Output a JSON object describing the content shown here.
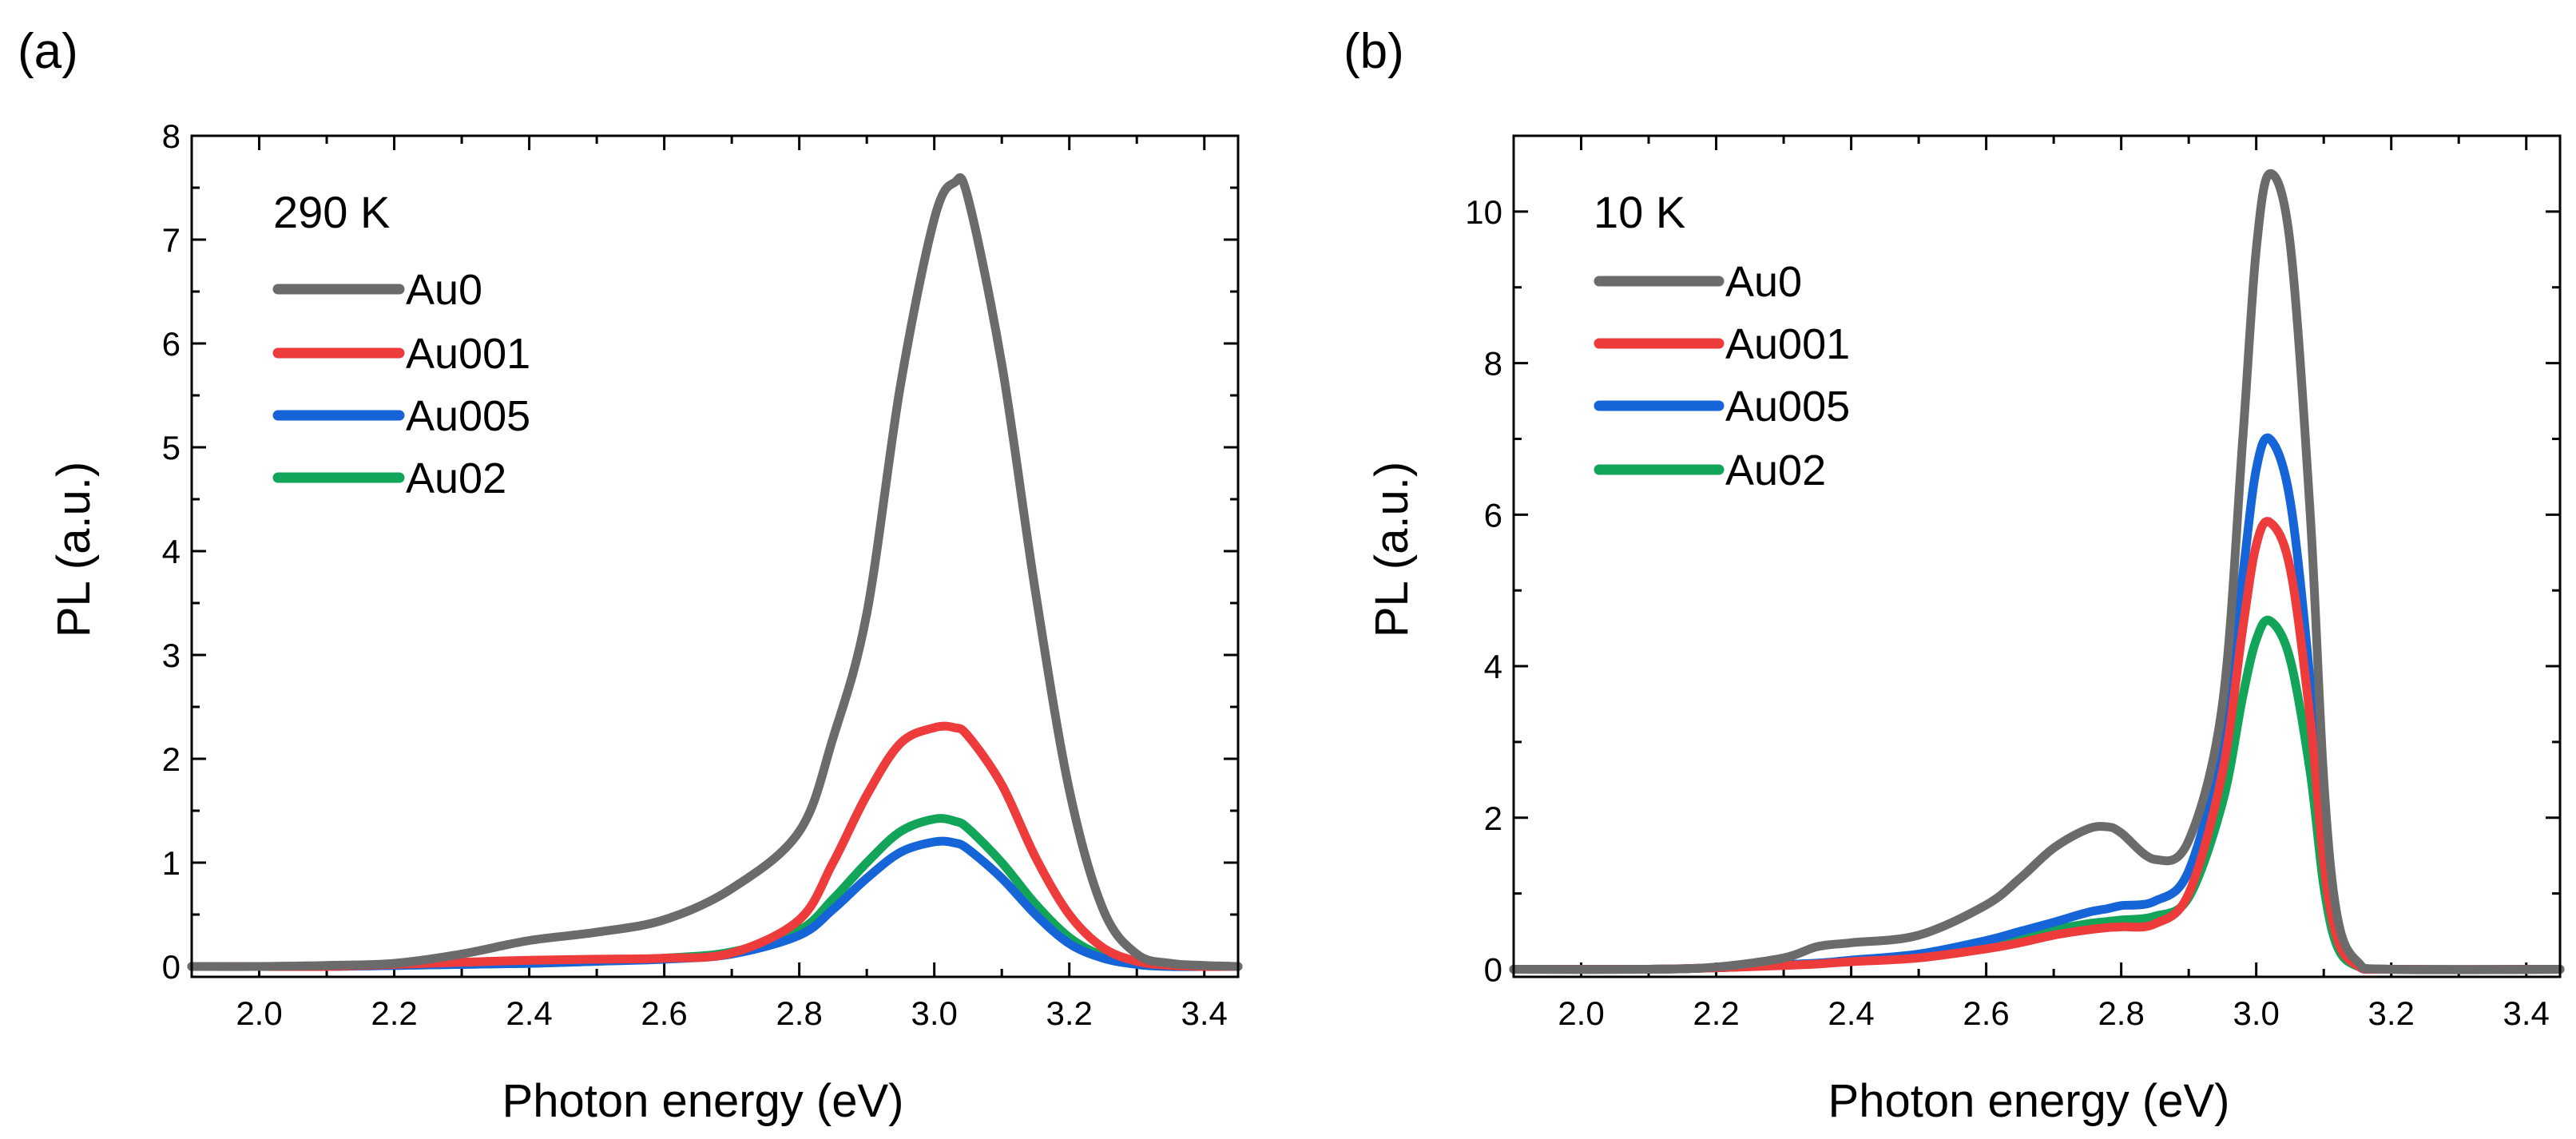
{
  "chart_data": [
    {
      "type": "line",
      "panel_label": "(a)",
      "annotation": "290 K",
      "xlabel": "Photon energy (eV)",
      "ylabel": "PL (a.u.)",
      "xlim": [
        1.9,
        3.45
      ],
      "ylim": [
        -0.1,
        8
      ],
      "xticks": [
        2.0,
        2.2,
        2.4,
        2.6,
        2.8,
        3.0,
        3.2,
        3.4
      ],
      "xtick_labels": [
        "2.0",
        "2.2",
        "2.4",
        "2.6",
        "2.8",
        "3.0",
        "3.2",
        "3.4"
      ],
      "yticks": [
        0,
        1,
        2,
        3,
        4,
        5,
        6,
        7,
        8
      ],
      "ytick_labels": [
        "0",
        "1",
        "2",
        "3",
        "4",
        "5",
        "6",
        "7",
        "8"
      ],
      "legend_position": "top-left",
      "x": [
        1.9,
        2.0,
        2.1,
        2.2,
        2.3,
        2.4,
        2.5,
        2.6,
        2.7,
        2.8,
        2.85,
        2.9,
        2.95,
        3.0,
        3.03,
        3.05,
        3.1,
        3.15,
        3.2,
        3.25,
        3.3,
        3.35,
        3.4,
        3.45
      ],
      "series": [
        {
          "name": "Au0",
          "color": "#6b6b6b",
          "values": [
            0.0,
            0.0,
            0.01,
            0.03,
            0.12,
            0.25,
            0.33,
            0.45,
            0.75,
            1.3,
            2.2,
            3.4,
            5.6,
            7.2,
            7.55,
            7.4,
            5.8,
            3.6,
            1.7,
            0.55,
            0.12,
            0.03,
            0.01,
            0.0
          ]
        },
        {
          "name": "Au001",
          "color": "#ee3b3b",
          "values": [
            0.0,
            0.0,
            0.0,
            0.02,
            0.04,
            0.06,
            0.07,
            0.08,
            0.13,
            0.45,
            1.0,
            1.65,
            2.15,
            2.3,
            2.3,
            2.22,
            1.75,
            1.05,
            0.5,
            0.18,
            0.05,
            0.01,
            0.0,
            0.0
          ]
        },
        {
          "name": "Au005",
          "color": "#1565d8",
          "values": [
            0.0,
            0.0,
            0.0,
            0.01,
            0.02,
            0.03,
            0.05,
            0.07,
            0.12,
            0.3,
            0.55,
            0.85,
            1.1,
            1.2,
            1.19,
            1.13,
            0.85,
            0.5,
            0.22,
            0.08,
            0.02,
            0.0,
            0.0,
            0.0
          ]
        },
        {
          "name": "Au02",
          "color": "#12a55a",
          "values": [
            0.0,
            0.0,
            0.0,
            0.01,
            0.02,
            0.03,
            0.05,
            0.08,
            0.14,
            0.35,
            0.65,
            1.0,
            1.3,
            1.42,
            1.4,
            1.33,
            1.0,
            0.6,
            0.28,
            0.1,
            0.02,
            0.0,
            0.0,
            0.0
          ]
        }
      ]
    },
    {
      "type": "line",
      "panel_label": "(b)",
      "annotation": "10 K",
      "xlabel": "Photon energy (eV)",
      "ylabel": "PL (a.u.)",
      "xlim": [
        1.9,
        3.45
      ],
      "ylim": [
        -0.1,
        11
      ],
      "xticks": [
        2.0,
        2.2,
        2.4,
        2.6,
        2.8,
        3.0,
        3.2,
        3.4
      ],
      "xtick_labels": [
        "2.0",
        "2.2",
        "2.4",
        "2.6",
        "2.8",
        "3.0",
        "3.2",
        "3.4"
      ],
      "yticks": [
        0,
        2,
        4,
        6,
        8,
        10
      ],
      "ytick_labels": [
        "0",
        "2",
        "4",
        "6",
        "8",
        "10"
      ],
      "legend_position": "top-left",
      "x": [
        1.9,
        2.1,
        2.2,
        2.3,
        2.35,
        2.4,
        2.5,
        2.6,
        2.65,
        2.7,
        2.75,
        2.78,
        2.8,
        2.85,
        2.9,
        2.95,
        2.98,
        3.0,
        3.02,
        3.05,
        3.08,
        3.1,
        3.12,
        3.15,
        3.2,
        3.45
      ],
      "series": [
        {
          "name": "Au0",
          "color": "#6b6b6b",
          "values": [
            0.0,
            0.0,
            0.03,
            0.15,
            0.3,
            0.35,
            0.45,
            0.85,
            1.2,
            1.6,
            1.85,
            1.88,
            1.8,
            1.45,
            1.7,
            3.5,
            7.0,
            9.5,
            10.5,
            9.6,
            6.0,
            2.5,
            0.7,
            0.1,
            0.0,
            0.0
          ]
        },
        {
          "name": "Au001",
          "color": "#ee3b3b",
          "values": [
            0.0,
            0.0,
            0.02,
            0.05,
            0.07,
            0.1,
            0.15,
            0.27,
            0.35,
            0.45,
            0.52,
            0.55,
            0.56,
            0.6,
            1.0,
            2.6,
            4.5,
            5.6,
            5.9,
            5.3,
            3.3,
            1.4,
            0.4,
            0.05,
            0.0,
            0.0
          ]
        },
        {
          "name": "Au005",
          "color": "#1565d8",
          "values": [
            0.0,
            0.0,
            0.02,
            0.06,
            0.08,
            0.12,
            0.2,
            0.38,
            0.5,
            0.62,
            0.75,
            0.8,
            0.84,
            0.9,
            1.3,
            3.0,
            5.2,
            6.6,
            7.0,
            6.2,
            3.8,
            1.6,
            0.45,
            0.05,
            0.0,
            0.0
          ]
        },
        {
          "name": "Au02",
          "color": "#12a55a",
          "values": [
            0.0,
            0.0,
            0.02,
            0.06,
            0.08,
            0.11,
            0.18,
            0.32,
            0.42,
            0.52,
            0.6,
            0.63,
            0.65,
            0.7,
            0.95,
            2.2,
            3.6,
            4.35,
            4.6,
            4.1,
            2.6,
            1.1,
            0.3,
            0.04,
            0.0,
            0.0
          ]
        }
      ]
    }
  ]
}
